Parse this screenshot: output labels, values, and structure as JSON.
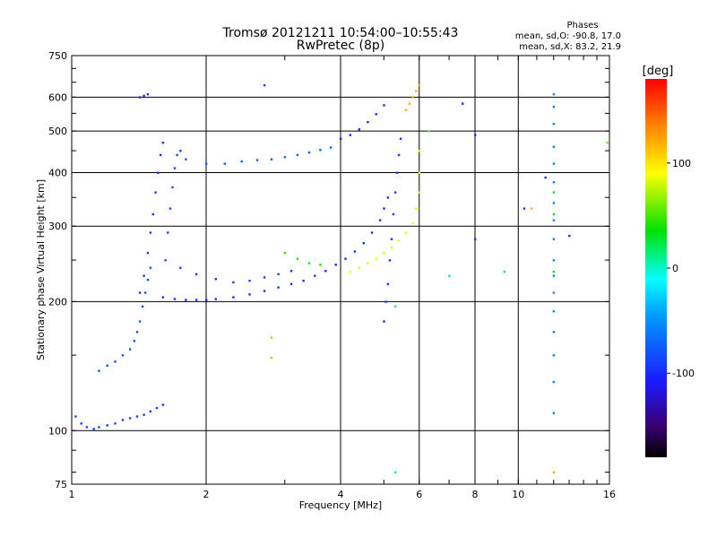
{
  "chart_data": {
    "type": "scatter",
    "title": "Tromsø 20121211 10:54:00–10:55:43",
    "subtitle": "RwPretec (8p)",
    "stats": {
      "heading": "Phases",
      "line_o": "mean, sd,O: -90.8, 17.0",
      "line_x": "mean, sd,X: 83.2, 21.9"
    },
    "xlabel": "Frequency [MHz]",
    "ylabel": "Stationary phase Virtual Height [km]",
    "x_scale": "log",
    "y_scale": "log",
    "xlim": [
      1,
      16
    ],
    "ylim": [
      75,
      750
    ],
    "x_ticks": [
      1,
      2,
      4,
      6,
      8,
      10,
      16
    ],
    "x_tick_labels": [
      "1",
      "2",
      "4",
      "6",
      "8",
      "10",
      "16"
    ],
    "x_grid": [
      2,
      4,
      6,
      8,
      10
    ],
    "y_ticks": [
      75,
      100,
      200,
      300,
      400,
      500,
      600,
      750
    ],
    "y_tick_labels": [
      "75",
      "100",
      "200",
      "300",
      "400",
      "500",
      "600",
      "750"
    ],
    "y_grid": [
      100,
      200,
      300,
      400,
      500,
      600
    ],
    "grid": true,
    "colorbar": {
      "label": "[deg]",
      "range": [
        -180,
        180
      ],
      "ticks": [
        100,
        0,
        -100
      ],
      "tick_labels": [
        "100",
        "0",
        "-100"
      ]
    },
    "traces": [
      {
        "name": "",
        "phase": -90,
        "points": [
          [
            1.02,
            108
          ],
          [
            1.05,
            104
          ],
          [
            1.08,
            102
          ],
          [
            1.12,
            101
          ],
          [
            1.15,
            102
          ],
          [
            1.2,
            103
          ],
          [
            1.25,
            104
          ],
          [
            1.3,
            106
          ],
          [
            1.35,
            107
          ],
          [
            1.4,
            108
          ],
          [
            1.45,
            109
          ],
          [
            1.5,
            111
          ],
          [
            1.55,
            113
          ],
          [
            1.6,
            115
          ]
        ]
      },
      {
        "name": "",
        "phase": -80,
        "points": [
          [
            1.15,
            138
          ],
          [
            1.2,
            142
          ],
          [
            1.25,
            145
          ],
          [
            1.3,
            150
          ],
          [
            1.35,
            155
          ],
          [
            1.38,
            162
          ],
          [
            1.4,
            170
          ],
          [
            1.42,
            180
          ],
          [
            1.44,
            195
          ],
          [
            1.46,
            210
          ],
          [
            1.48,
            225
          ],
          [
            1.5,
            240
          ]
        ]
      },
      {
        "name": "",
        "phase": -95,
        "points": [
          [
            1.42,
            210
          ],
          [
            1.45,
            230
          ],
          [
            1.48,
            260
          ],
          [
            1.5,
            290
          ],
          [
            1.52,
            320
          ],
          [
            1.54,
            360
          ],
          [
            1.56,
            400
          ],
          [
            1.58,
            440
          ],
          [
            1.6,
            470
          ]
        ]
      },
      {
        "name": "",
        "phase": -85,
        "points": [
          [
            1.62,
            250
          ],
          [
            1.64,
            290
          ],
          [
            1.66,
            330
          ],
          [
            1.68,
            370
          ],
          [
            1.7,
            410
          ],
          [
            1.72,
            440
          ],
          [
            1.75,
            450
          ]
        ]
      },
      {
        "name": "",
        "phase": -100,
        "points": [
          [
            1.6,
            205
          ],
          [
            1.7,
            203
          ],
          [
            1.8,
            202
          ],
          [
            1.9,
            202
          ],
          [
            2.0,
            202
          ],
          [
            2.1,
            203
          ],
          [
            2.3,
            205
          ],
          [
            2.5,
            208
          ],
          [
            2.7,
            212
          ],
          [
            2.9,
            216
          ],
          [
            3.1,
            220
          ],
          [
            3.3,
            224
          ],
          [
            3.5,
            230
          ],
          [
            3.7,
            236
          ],
          [
            3.9,
            244
          ],
          [
            4.1,
            252
          ],
          [
            4.3,
            262
          ],
          [
            4.5,
            274
          ],
          [
            4.7,
            290
          ],
          [
            4.9,
            310
          ],
          [
            5.0,
            330
          ],
          [
            5.1,
            350
          ]
        ]
      },
      {
        "name": "",
        "phase": -90,
        "points": [
          [
            1.75,
            240
          ],
          [
            1.9,
            232
          ],
          [
            2.1,
            226
          ],
          [
            2.3,
            222
          ],
          [
            2.5,
            224
          ],
          [
            2.7,
            228
          ],
          [
            2.9,
            232
          ],
          [
            3.1,
            236
          ]
        ]
      },
      {
        "name": "",
        "phase": -75,
        "points": [
          [
            1.8,
            430
          ],
          [
            2.0,
            420
          ],
          [
            2.2,
            420
          ],
          [
            2.4,
            425
          ],
          [
            2.6,
            428
          ],
          [
            2.8,
            430
          ],
          [
            3.0,
            435
          ],
          [
            3.2,
            440
          ],
          [
            3.4,
            446
          ],
          [
            3.6,
            452
          ],
          [
            3.8,
            458
          ]
        ]
      },
      {
        "name": "",
        "phase": -100,
        "points": [
          [
            4.0,
            480
          ],
          [
            4.2,
            490
          ],
          [
            4.4,
            505
          ],
          [
            4.6,
            525
          ],
          [
            4.8,
            548
          ],
          [
            5.0,
            575
          ]
        ]
      },
      {
        "name": "",
        "phase": 85,
        "points": [
          [
            4.2,
            235
          ],
          [
            4.4,
            240
          ],
          [
            4.6,
            246
          ],
          [
            4.8,
            252
          ],
          [
            5.0,
            260
          ],
          [
            5.2,
            268
          ],
          [
            5.4,
            278
          ],
          [
            5.6,
            290
          ],
          [
            5.8,
            305
          ],
          [
            5.9,
            330
          ],
          [
            6.0,
            360
          ],
          [
            6.0,
            400
          ],
          [
            6.0,
            450
          ]
        ]
      },
      {
        "name": "",
        "phase": 40,
        "points": [
          [
            3.0,
            260
          ],
          [
            3.2,
            252
          ],
          [
            3.4,
            246
          ],
          [
            3.6,
            244
          ]
        ]
      },
      {
        "name": "",
        "phase": 120,
        "points": [
          [
            5.6,
            560
          ],
          [
            5.7,
            580
          ],
          [
            5.8,
            600
          ],
          [
            5.9,
            620
          ],
          [
            6.0,
            640
          ]
        ]
      },
      {
        "name": "",
        "phase": -95,
        "points": [
          [
            5.0,
            180
          ],
          [
            5.05,
            200
          ],
          [
            5.1,
            220
          ],
          [
            5.15,
            250
          ],
          [
            5.2,
            280
          ],
          [
            5.25,
            320
          ],
          [
            5.3,
            360
          ],
          [
            5.35,
            400
          ],
          [
            5.4,
            440
          ],
          [
            5.45,
            480
          ]
        ]
      },
      {
        "name": "",
        "phase": -60,
        "points": [
          [
            12,
            110
          ],
          [
            12,
            130
          ],
          [
            12,
            150
          ],
          [
            12,
            170
          ],
          [
            12,
            190
          ],
          [
            12,
            210
          ],
          [
            12,
            230
          ],
          [
            12,
            250
          ],
          [
            12,
            280
          ],
          [
            12,
            310
          ],
          [
            12,
            340
          ],
          [
            12,
            380
          ],
          [
            12,
            420
          ],
          [
            12,
            460
          ],
          [
            12,
            520
          ],
          [
            12,
            570
          ],
          [
            12,
            610
          ]
        ]
      },
      {
        "name": "",
        "phase": 30,
        "points": [
          [
            12,
            235
          ],
          [
            12,
            320
          ],
          [
            12,
            360
          ]
        ]
      },
      {
        "name": "",
        "phase": -100,
        "points": [
          [
            1.42,
            600
          ],
          [
            1.45,
            605
          ],
          [
            1.48,
            610
          ],
          [
            2.7,
            640
          ],
          [
            7.5,
            580
          ],
          [
            8.0,
            490
          ],
          [
            8.0,
            280
          ],
          [
            10.3,
            330
          ],
          [
            11.5,
            390
          ],
          [
            13.0,
            285
          ]
        ]
      },
      {
        "name": "",
        "phase": 120,
        "points": [
          [
            2.8,
            165
          ],
          [
            10.7,
            330
          ],
          [
            12,
            80
          ]
        ]
      },
      {
        "name": "",
        "phase": 60,
        "points": [
          [
            2.8,
            148
          ],
          [
            15.8,
            470
          ],
          [
            6.3,
            500
          ]
        ]
      },
      {
        "name": "",
        "phase": 10,
        "points": [
          [
            5.3,
            80
          ],
          [
            5.3,
            195
          ],
          [
            9.3,
            235
          ],
          [
            7.0,
            230
          ]
        ]
      }
    ]
  }
}
